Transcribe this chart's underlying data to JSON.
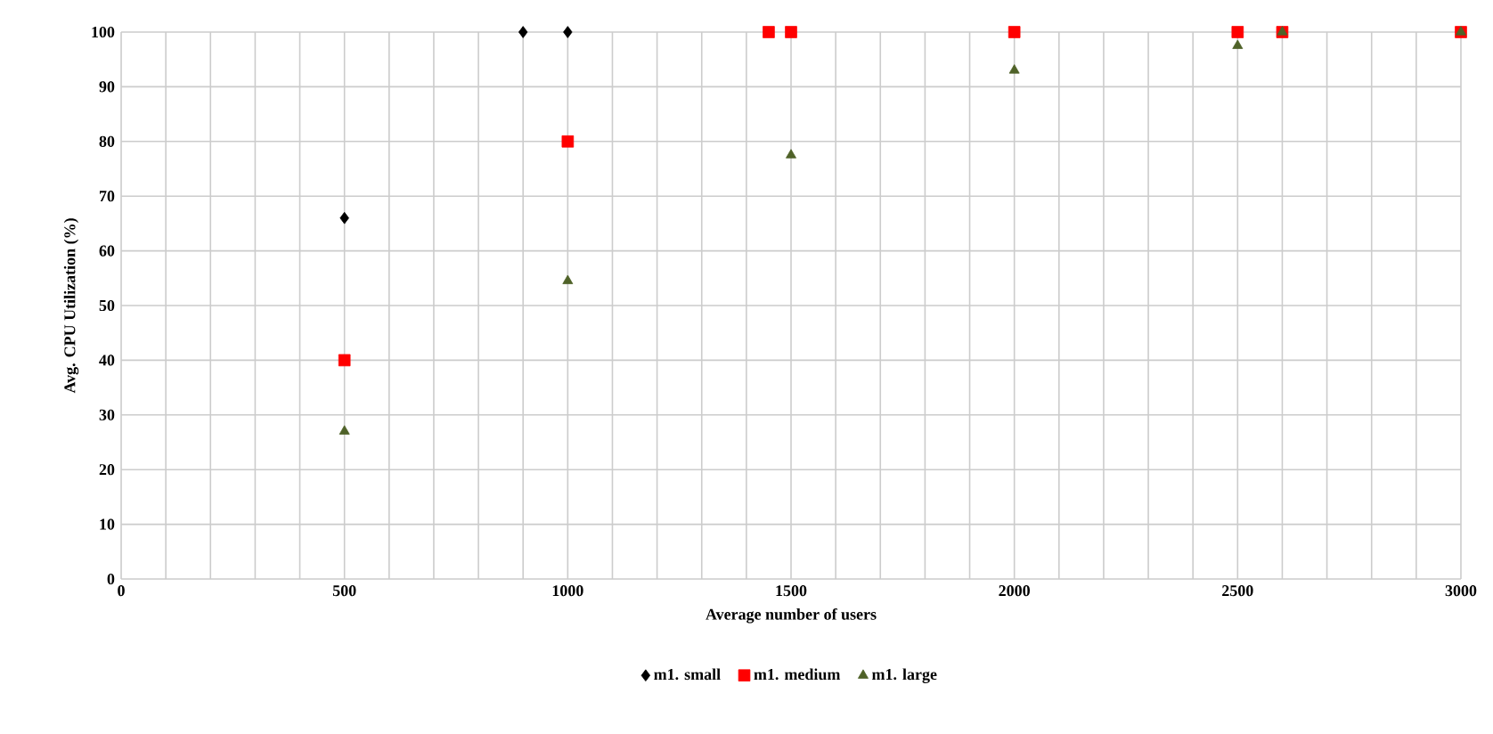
{
  "chart_data": {
    "type": "scatter",
    "xlabel": "Average number  of users",
    "ylabel": "Avg. CPU Utilization (%)",
    "xlim": [
      0,
      3000
    ],
    "ylim": [
      0,
      100
    ],
    "xticks": [
      0,
      500,
      1000,
      1500,
      2000,
      2500,
      3000
    ],
    "yticks": [
      0,
      10,
      20,
      30,
      40,
      50,
      60,
      70,
      80,
      90,
      100
    ],
    "grid": true,
    "legend": "bottom",
    "series": [
      {
        "name": "m1. small",
        "color": "#000000",
        "marker": "diamond",
        "x": [
          500,
          900,
          1000
        ],
        "values": [
          66,
          100,
          100
        ]
      },
      {
        "name": "m1. medium",
        "color": "#ff0000",
        "marker": "square",
        "x": [
          500,
          1000,
          1450,
          1500,
          2000,
          2500,
          2600,
          3000
        ],
        "values": [
          40,
          80,
          100,
          100,
          100,
          100,
          100,
          100
        ]
      },
      {
        "name": "m1. large",
        "color": "#4f6228",
        "marker": "triangle",
        "x": [
          500,
          1000,
          1500,
          2000,
          2500,
          2600,
          3000
        ],
        "values": [
          27,
          54.5,
          77.5,
          93,
          97.5,
          100,
          100
        ]
      }
    ]
  }
}
